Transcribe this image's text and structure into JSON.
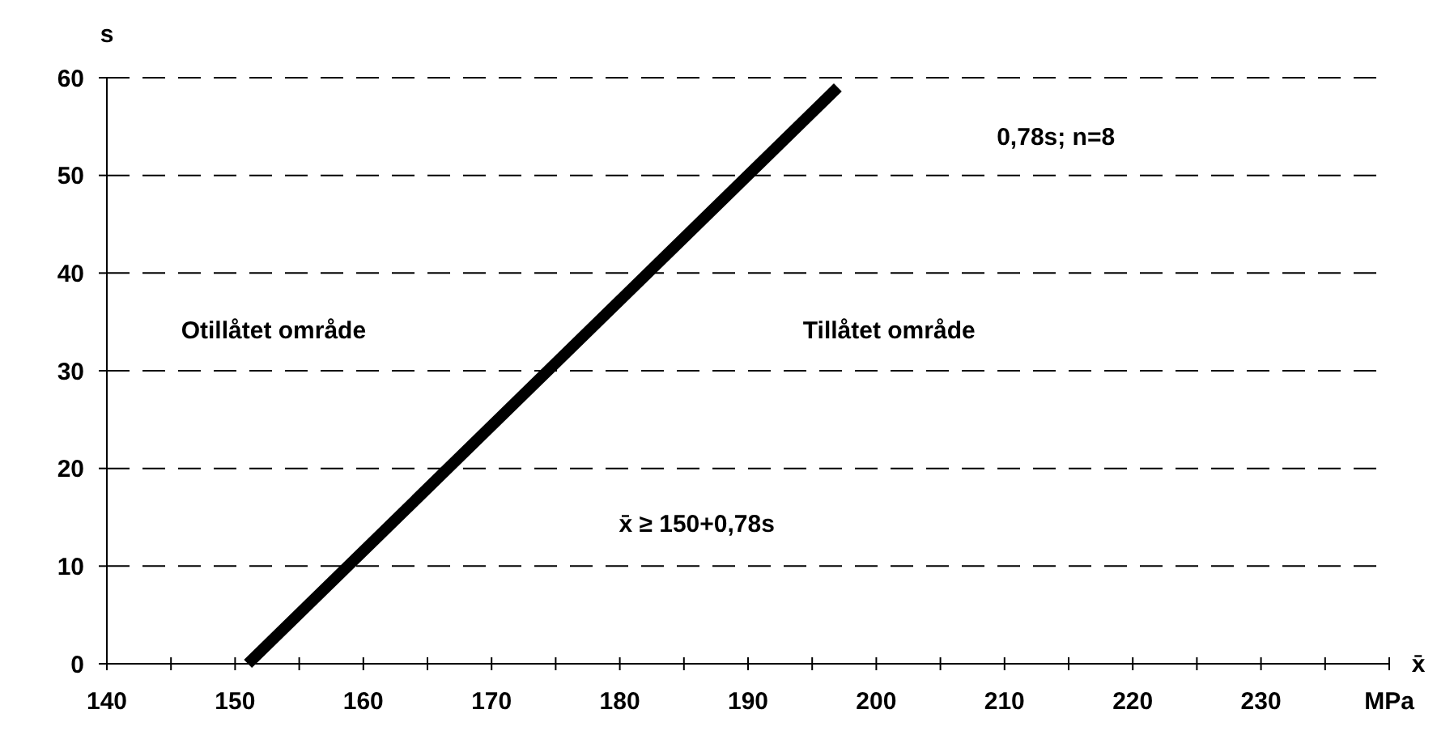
{
  "chart_data": {
    "type": "line",
    "xlabel": "x̄",
    "ylabel": "s",
    "x": [
      151,
      197
    ],
    "series": [
      {
        "color": "#000000",
        "values": [
          0,
          59
        ]
      }
    ],
    "xlim": [
      140,
      240
    ],
    "xticks": [
      140,
      {
        "value": 145,
        "label": null
      },
      150,
      {
        "value": 155,
        "label": null
      },
      160,
      {
        "value": 165,
        "label": null
      },
      170,
      {
        "value": 175,
        "label": null
      },
      180,
      {
        "value": 185,
        "label": null
      },
      190,
      {
        "value": 195,
        "label": null
      },
      200,
      {
        "value": 205,
        "label": null
      },
      210,
      {
        "value": 215,
        "label": null
      },
      220,
      {
        "value": 225,
        "label": null
      },
      230,
      {
        "value": 235,
        "label": null
      },
      {
        "value": 240,
        "label": "MPa"
      }
    ],
    "ylim": [
      0,
      60
    ],
    "yticks": [
      0,
      10,
      20,
      30,
      40,
      50,
      60
    ],
    "grid": "y",
    "marker": "none",
    "line_style": "solid",
    "annotations": [
      "0,78s; n=8",
      "Otillåtet område",
      "Tillåtet område",
      "x̄ ≥ 150+0,78s"
    ]
  }
}
